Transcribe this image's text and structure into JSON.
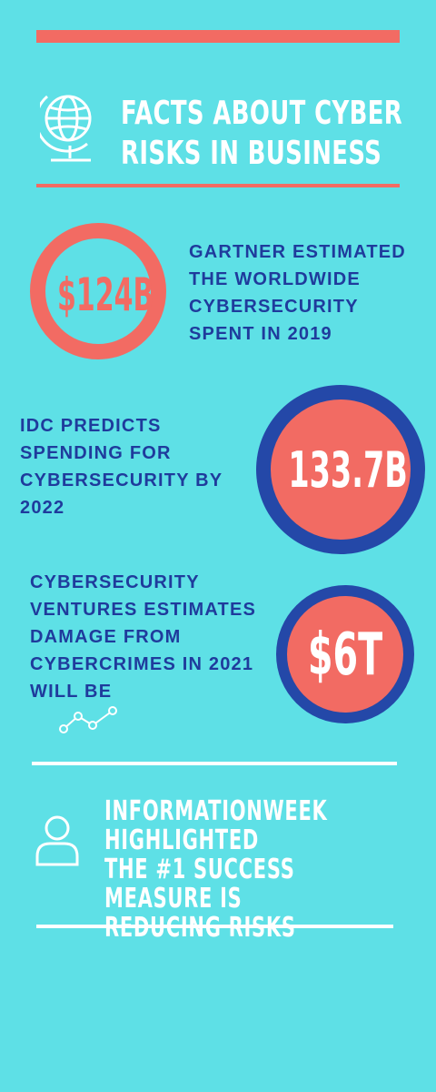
{
  "header": {
    "title_line1": "FACTS ABOUT CYBER",
    "title_line2": "RISKS IN BUSINESS",
    "icon": "globe-icon"
  },
  "facts": [
    {
      "figure": "$124B",
      "text": "GARTNER ESTIMATED THE WORLDWIDE CYBERSECURITY SPENT IN 2019"
    },
    {
      "figure": "133.7B",
      "text": "IDC PREDICTS SPENDING FOR CYBERSECURITY BY 2022"
    },
    {
      "figure": "$6T",
      "text": "CYBERSECURITY VENTURES ESTIMATES DAMAGE FROM CYBERCRIMES IN 2021 WILL BE"
    }
  ],
  "highlight": {
    "text_line1": "INFORMATIONWEEK HIGHLIGHTED",
    "text_line2": "THE #1 SUCCESS MEASURE IS",
    "text_line3": "REDUCING RISKS",
    "icon": "user-icon"
  },
  "colors": {
    "background": "#5ee0e6",
    "coral": "#f26b63",
    "navy": "#2448a8",
    "text_blue": "#1f3b9c",
    "white": "#ffffff"
  }
}
